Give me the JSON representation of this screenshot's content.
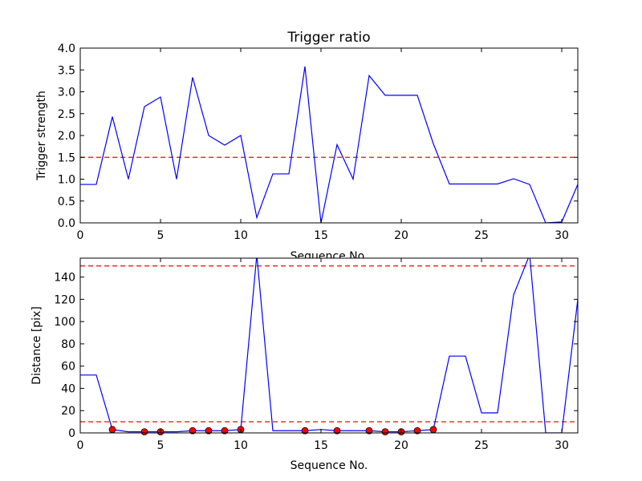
{
  "chart_data": [
    {
      "type": "line",
      "title": "Trigger ratio",
      "xlabel": "Sequence No.",
      "ylabel": "Trigger strength",
      "xlim": [
        0,
        31
      ],
      "ylim": [
        0,
        4.0
      ],
      "xticks": [
        0,
        5,
        10,
        15,
        20,
        25,
        30
      ],
      "yticks": [
        0.0,
        0.5,
        1.0,
        1.5,
        2.0,
        2.5,
        3.0,
        3.5,
        4.0
      ],
      "ytick_labels": [
        "0.0",
        "0.5",
        "1.0",
        "1.5",
        "2.0",
        "2.5",
        "3.0",
        "3.5",
        "4.0"
      ],
      "grid": false,
      "line_color": "#0000ff",
      "threshold_color": "#ff0000",
      "thresholds": [
        1.5
      ],
      "x": [
        0,
        1,
        2,
        3,
        4,
        5,
        6,
        7,
        8,
        9,
        10,
        11,
        12,
        13,
        14,
        15,
        16,
        17,
        18,
        19,
        20,
        21,
        22,
        23,
        24,
        25,
        26,
        27,
        28,
        29,
        30,
        31
      ],
      "series": [
        {
          "values": [
            0.88,
            0.88,
            2.43,
            1.0,
            2.66,
            2.88,
            1.0,
            3.33,
            2.0,
            1.78,
            2.0,
            0.12,
            1.12,
            1.12,
            3.58,
            0.0,
            1.79,
            1.0,
            3.37,
            2.92,
            2.92,
            2.92,
            1.81,
            0.89,
            0.89,
            0.89,
            0.89,
            1.01,
            0.88,
            0.0,
            0.02,
            0.88
          ]
        }
      ]
    },
    {
      "type": "line",
      "title": "",
      "xlabel": "Sequence No.",
      "ylabel": "Distance [pix]",
      "xlim": [
        0,
        31
      ],
      "ylim": [
        0,
        157
      ],
      "xticks": [
        0,
        5,
        10,
        15,
        20,
        25,
        30
      ],
      "yticks": [
        0,
        20,
        40,
        60,
        80,
        100,
        120,
        140
      ],
      "ytick_labels": [
        "0",
        "20",
        "40",
        "60",
        "80",
        "100",
        "120",
        "140"
      ],
      "grid": false,
      "line_color": "#0000ff",
      "threshold_color": "#ff0000",
      "marker_color": "#ff0000",
      "thresholds": [
        10,
        150
      ],
      "x": [
        0,
        1,
        2,
        3,
        4,
        5,
        6,
        7,
        8,
        9,
        10,
        11,
        12,
        13,
        14,
        15,
        16,
        17,
        18,
        19,
        20,
        21,
        22,
        23,
        24,
        25,
        26,
        27,
        28,
        29,
        30,
        31
      ],
      "series": [
        {
          "values": [
            52,
            52,
            3,
            1,
            1,
            1,
            1,
            2,
            2,
            2,
            3,
            160,
            2,
            2,
            2,
            3,
            2,
            2,
            2,
            1,
            1,
            2,
            3,
            69,
            69,
            18,
            18,
            124,
            160,
            0,
            0,
            120
          ]
        }
      ],
      "markers": {
        "x": [
          2,
          4,
          5,
          7,
          8,
          9,
          10,
          14,
          16,
          18,
          19,
          20,
          21,
          22
        ],
        "y": [
          3,
          1,
          1,
          2,
          2,
          2,
          3,
          2,
          2,
          2,
          1,
          1,
          2,
          3
        ]
      }
    }
  ]
}
